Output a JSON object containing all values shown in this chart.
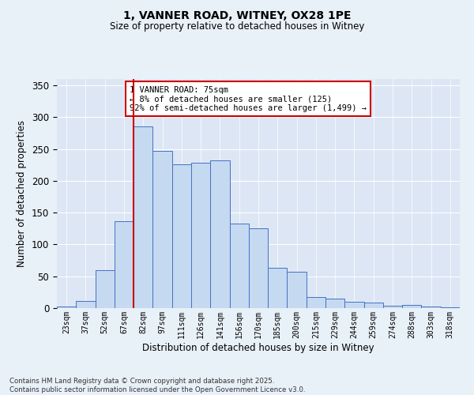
{
  "title_line1": "1, VANNER ROAD, WITNEY, OX28 1PE",
  "title_line2": "Size of property relative to detached houses in Witney",
  "xlabel": "Distribution of detached houses by size in Witney",
  "ylabel": "Number of detached properties",
  "bin_labels": [
    "23sqm",
    "37sqm",
    "52sqm",
    "67sqm",
    "82sqm",
    "97sqm",
    "111sqm",
    "126sqm",
    "141sqm",
    "156sqm",
    "170sqm",
    "185sqm",
    "200sqm",
    "215sqm",
    "229sqm",
    "244sqm",
    "259sqm",
    "274sqm",
    "288sqm",
    "303sqm",
    "318sqm"
  ],
  "bar_values": [
    3,
    11,
    59,
    137,
    285,
    247,
    226,
    229,
    232,
    133,
    126,
    63,
    57,
    18,
    15,
    10,
    9,
    4,
    5,
    2,
    1
  ],
  "bar_color": "#c5d9f1",
  "bar_edge_color": "#4472c4",
  "vline_color": "#cc0000",
  "annotation_text": "1 VANNER ROAD: 75sqm\n← 8% of detached houses are smaller (125)\n92% of semi-detached houses are larger (1,499) →",
  "annotation_box_color": "#cc0000",
  "ylim": [
    0,
    360
  ],
  "yticks": [
    0,
    50,
    100,
    150,
    200,
    250,
    300,
    350
  ],
  "background_color": "#e8f0f8",
  "plot_bg_color": "#dce6f4",
  "grid_color": "#ffffff",
  "footer_text": "Contains HM Land Registry data © Crown copyright and database right 2025.\nContains public sector information licensed under the Open Government Licence v3.0."
}
